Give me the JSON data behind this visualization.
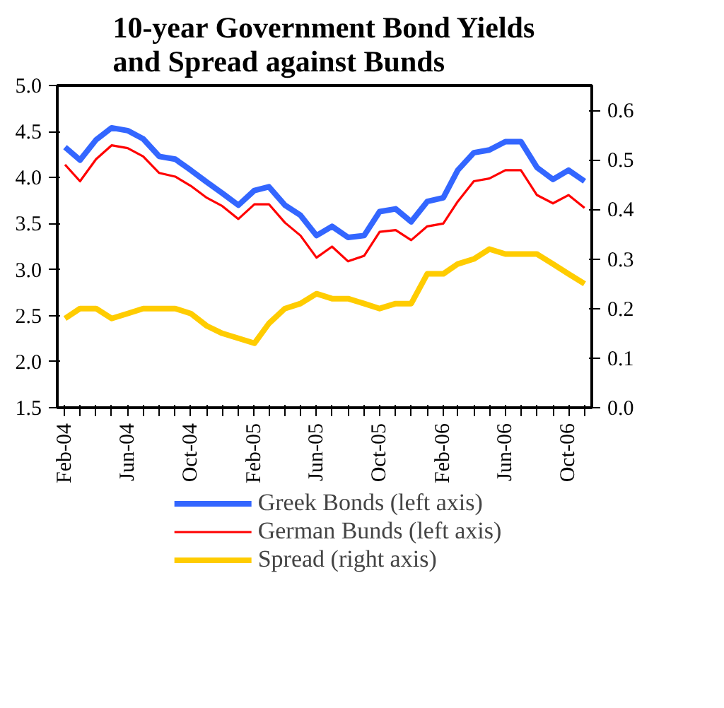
{
  "chart_data": {
    "type": "line",
    "title": "10-year Government Bond Yields\nand Spread against Bunds",
    "x": [
      "2004-02",
      "2004-03",
      "2004-04",
      "2004-05",
      "2004-06",
      "2004-07",
      "2004-08",
      "2004-09",
      "2004-10",
      "2004-11",
      "2004-12",
      "2005-01",
      "2005-02",
      "2005-03",
      "2005-04",
      "2005-05",
      "2005-06",
      "2005-07",
      "2005-08",
      "2005-09",
      "2005-10",
      "2005-11",
      "2005-12",
      "2006-01",
      "2006-02",
      "2006-03",
      "2006-04",
      "2006-05",
      "2006-06",
      "2006-07",
      "2006-08",
      "2006-09",
      "2006-10",
      "2006-11"
    ],
    "series": [
      {
        "name": "Greek Bonds (left axis)",
        "color": "#3366ff",
        "values": [
          4.33,
          4.19,
          4.41,
          4.54,
          4.51,
          4.42,
          4.23,
          4.2,
          4.08,
          3.95,
          3.83,
          3.7,
          3.86,
          3.9,
          3.7,
          3.59,
          3.37,
          3.47,
          3.35,
          3.37,
          3.63,
          3.66,
          3.52,
          3.74,
          3.78,
          4.08,
          4.27,
          4.3,
          4.39,
          4.39,
          4.11,
          3.98,
          4.08,
          3.96
        ]
      },
      {
        "name": "German Bunds (left axis)",
        "color": "#ff0000",
        "values": [
          4.14,
          3.96,
          4.2,
          4.35,
          4.32,
          4.23,
          4.05,
          4.01,
          3.91,
          3.78,
          3.69,
          3.55,
          3.71,
          3.71,
          3.51,
          3.37,
          3.13,
          3.25,
          3.09,
          3.15,
          3.41,
          3.43,
          3.32,
          3.47,
          3.5,
          3.74,
          3.96,
          3.99,
          4.08,
          4.08,
          3.81,
          3.72,
          3.81,
          3.67
        ]
      },
      {
        "name": "Spread (right axis)",
        "color": "#ffcc00",
        "axis": "y2",
        "values": [
          0.18,
          0.2,
          0.2,
          0.18,
          0.19,
          0.2,
          0.2,
          0.2,
          0.19,
          0.165,
          0.15,
          0.14,
          0.13,
          0.17,
          0.2,
          0.21,
          0.23,
          0.22,
          0.22,
          0.21,
          0.2,
          0.21,
          0.21,
          0.27,
          0.27,
          0.29,
          0.3,
          0.32,
          0.31,
          0.31,
          0.31,
          0.29,
          0.27,
          0.25
        ]
      }
    ],
    "xlim": [
      "2004-01-17",
      "2006-11-15"
    ],
    "xticks": [
      {
        "value": "2004-02",
        "label": "Feb-04"
      },
      {
        "value": "2004-03",
        "label": null
      },
      {
        "value": "2004-04",
        "label": null
      },
      {
        "value": "2004-05",
        "label": null
      },
      {
        "value": "2004-06",
        "label": "Jun-04"
      },
      {
        "value": "2004-07",
        "label": null
      },
      {
        "value": "2004-08",
        "label": null
      },
      {
        "value": "2004-09",
        "label": null
      },
      {
        "value": "2004-10",
        "label": "Oct-04"
      },
      {
        "value": "2004-11",
        "label": null
      },
      {
        "value": "2004-12",
        "label": null
      },
      {
        "value": "2005-01",
        "label": null
      },
      {
        "value": "2005-02",
        "label": "Feb-05"
      },
      {
        "value": "2005-03",
        "label": null
      },
      {
        "value": "2005-04",
        "label": null
      },
      {
        "value": "2005-05",
        "label": null
      },
      {
        "value": "2005-06",
        "label": "Jun-05"
      },
      {
        "value": "2005-07",
        "label": null
      },
      {
        "value": "2005-08",
        "label": null
      },
      {
        "value": "2005-09",
        "label": null
      },
      {
        "value": "2005-10",
        "label": "Oct-05"
      },
      {
        "value": "2005-11",
        "label": null
      },
      {
        "value": "2005-12",
        "label": null
      },
      {
        "value": "2006-01",
        "label": null
      },
      {
        "value": "2006-02",
        "label": "Feb-06"
      },
      {
        "value": "2006-03",
        "label": null
      },
      {
        "value": "2006-04",
        "label": null
      },
      {
        "value": "2006-05",
        "label": null
      },
      {
        "value": "2006-06",
        "label": "Jun-06"
      },
      {
        "value": "2006-07",
        "label": null
      },
      {
        "value": "2006-08",
        "label": null
      },
      {
        "value": "2006-09",
        "label": null
      },
      {
        "value": "2006-10",
        "label": "Oct-06"
      },
      {
        "value": "2006-11",
        "label": null
      }
    ],
    "ylim": [
      1.5,
      5.0
    ],
    "yticks": [
      {
        "value": 1.5,
        "label": "1.5"
      },
      {
        "value": 2,
        "label": "2.0"
      },
      {
        "value": 2.5,
        "label": "2.5"
      },
      {
        "value": 3,
        "label": "3.0"
      },
      {
        "value": 3.5,
        "label": "3.5"
      },
      {
        "value": 4,
        "label": "4.0"
      },
      {
        "value": 4.5,
        "label": "4.5"
      },
      {
        "value": 5,
        "label": "5.0"
      }
    ],
    "y2lim": [
      0,
      0.65
    ],
    "y2ticks": [
      {
        "value": 0,
        "label": "0.0"
      },
      {
        "value": 0.1,
        "label": "0.1"
      },
      {
        "value": 0.2,
        "label": "0.2"
      },
      {
        "value": 0.3,
        "label": "0.3"
      },
      {
        "value": 0.4,
        "label": "0.4"
      },
      {
        "value": 0.5,
        "label": "0.5"
      },
      {
        "value": 0.6,
        "label": "0.6"
      }
    ],
    "grid": false,
    "legend": "bottom"
  }
}
